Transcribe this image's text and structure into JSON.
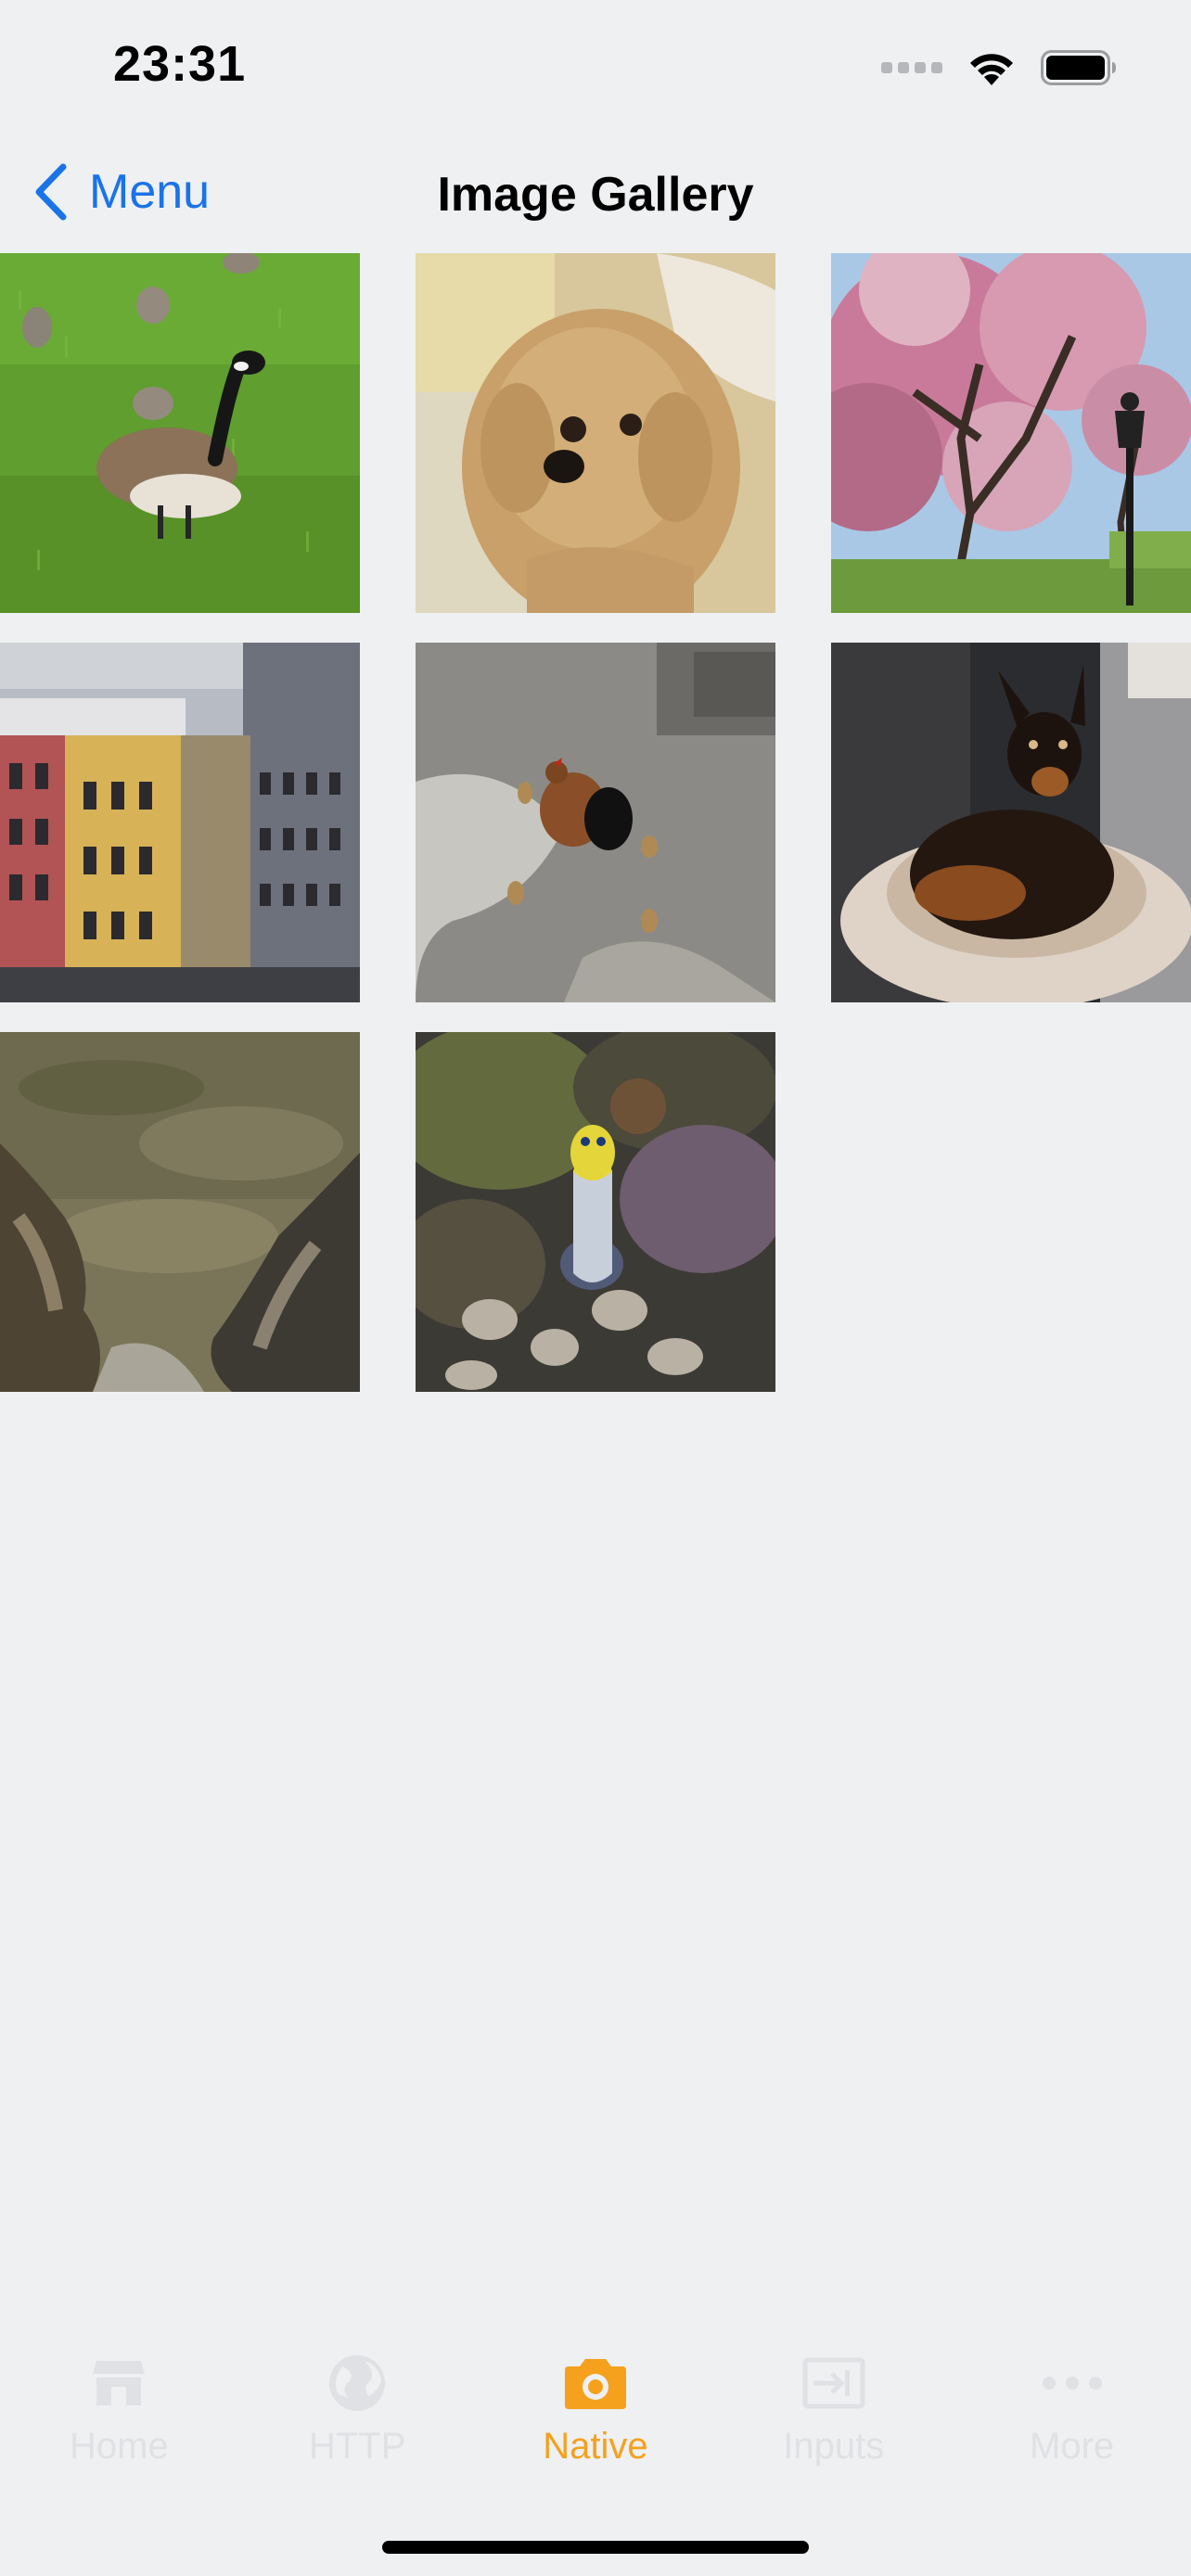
{
  "status_bar": {
    "time": "23:31",
    "icons": [
      "signal-dots-icon",
      "wifi-icon",
      "battery-icon"
    ]
  },
  "nav": {
    "back_label": "Menu",
    "title": "Image Gallery"
  },
  "gallery": {
    "images": [
      {
        "name": "goose-on-grass",
        "subject": "goose"
      },
      {
        "name": "fluffy-dog",
        "subject": "dog"
      },
      {
        "name": "cherry-blossom-trees",
        "subject": "trees"
      },
      {
        "name": "city-buildings",
        "subject": "buildings"
      },
      {
        "name": "hen-with-chicks",
        "subject": "hen"
      },
      {
        "name": "dog-in-bed",
        "subject": "dog"
      },
      {
        "name": "tide-pool-rocks",
        "subject": "rocks"
      },
      {
        "name": "yellow-fish",
        "subject": "fish"
      }
    ]
  },
  "tabs": [
    {
      "label": "Home",
      "icon": "store-icon",
      "active": false
    },
    {
      "label": "HTTP",
      "icon": "globe-icon",
      "active": false
    },
    {
      "label": "Native",
      "icon": "camera-icon",
      "active": true
    },
    {
      "label": "Inputs",
      "icon": "input-icon",
      "active": false
    },
    {
      "label": "More",
      "icon": "more-icon",
      "active": false
    }
  ],
  "colors": {
    "accent": "#f5a11d",
    "link": "#1a73e8",
    "inactive_tab": "#dfe1e4",
    "background": "#eef0f2"
  }
}
